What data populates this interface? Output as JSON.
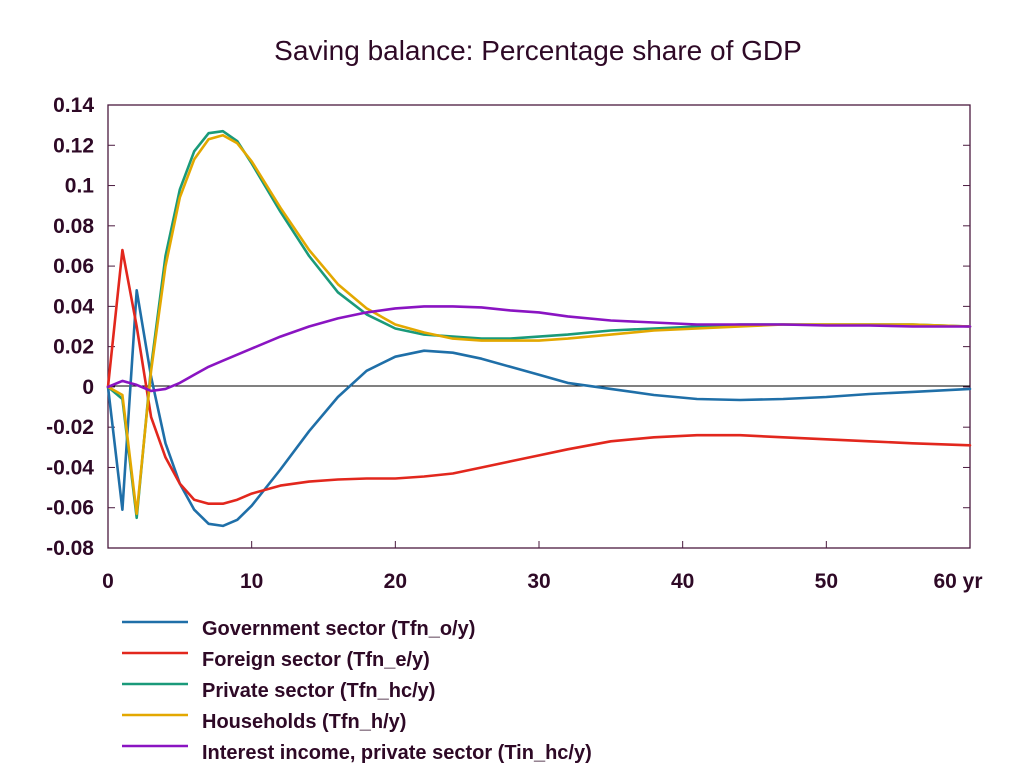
{
  "chart_data": {
    "type": "line",
    "title": "Saving balance: Percentage share of GDP",
    "xlabel": "",
    "ylabel": "",
    "x_unit": "yr",
    "xlim": [
      0,
      60
    ],
    "ylim": [
      -0.08,
      0.14
    ],
    "x_ticks": [
      0,
      10,
      20,
      30,
      40,
      50,
      60
    ],
    "x_tick_labels": [
      "0",
      "10",
      "20",
      "30",
      "40",
      "50",
      "60 yr"
    ],
    "y_ticks": [
      -0.08,
      -0.06,
      -0.04,
      -0.02,
      0,
      0.02,
      0.04,
      0.06,
      0.08,
      0.1,
      0.12,
      0.14
    ],
    "y_tick_labels": [
      "-0.08",
      "-0.06",
      "-0.04",
      "-0.02",
      "0",
      "0.02",
      "0.04",
      "0.06",
      "0.08",
      "0.1",
      "0.12",
      "0.14"
    ],
    "zero_line": true,
    "grid": false,
    "legend_position": "bottom",
    "series": [
      {
        "name": "Government sector (Tfn_o/y)",
        "color": "#1f6fa8",
        "points": [
          [
            0,
            0
          ],
          [
            1,
            -0.061
          ],
          [
            2,
            0.048
          ],
          [
            3,
            0.005
          ],
          [
            4,
            -0.028
          ],
          [
            5,
            -0.048
          ],
          [
            6,
            -0.061
          ],
          [
            7,
            -0.068
          ],
          [
            8,
            -0.069
          ],
          [
            9,
            -0.066
          ],
          [
            10,
            -0.059
          ],
          [
            12,
            -0.041
          ],
          [
            14,
            -0.022
          ],
          [
            16,
            -0.005
          ],
          [
            18,
            0.008
          ],
          [
            20,
            0.015
          ],
          [
            22,
            0.018
          ],
          [
            24,
            0.017
          ],
          [
            26,
            0.014
          ],
          [
            28,
            0.01
          ],
          [
            30,
            0.006
          ],
          [
            32,
            0.002
          ],
          [
            35,
            -0.001
          ],
          [
            38,
            -0.004
          ],
          [
            41,
            -0.006
          ],
          [
            44,
            -0.0065
          ],
          [
            47,
            -0.006
          ],
          [
            50,
            -0.005
          ],
          [
            53,
            -0.0035
          ],
          [
            56,
            -0.0025
          ],
          [
            60,
            -0.001
          ]
        ]
      },
      {
        "name": "Foreign sector (Tfn_e/y)",
        "color": "#e2271d",
        "points": [
          [
            0,
            0
          ],
          [
            1,
            0.068
          ],
          [
            2,
            0.03
          ],
          [
            3,
            -0.015
          ],
          [
            4,
            -0.035
          ],
          [
            5,
            -0.048
          ],
          [
            6,
            -0.056
          ],
          [
            7,
            -0.058
          ],
          [
            8,
            -0.058
          ],
          [
            9,
            -0.056
          ],
          [
            10,
            -0.053
          ],
          [
            12,
            -0.049
          ],
          [
            14,
            -0.047
          ],
          [
            16,
            -0.046
          ],
          [
            18,
            -0.0455
          ],
          [
            20,
            -0.0455
          ],
          [
            22,
            -0.0445
          ],
          [
            24,
            -0.043
          ],
          [
            26,
            -0.04
          ],
          [
            28,
            -0.037
          ],
          [
            30,
            -0.034
          ],
          [
            32,
            -0.031
          ],
          [
            35,
            -0.027
          ],
          [
            38,
            -0.025
          ],
          [
            41,
            -0.024
          ],
          [
            44,
            -0.024
          ],
          [
            47,
            -0.025
          ],
          [
            50,
            -0.026
          ],
          [
            53,
            -0.027
          ],
          [
            56,
            -0.028
          ],
          [
            60,
            -0.029
          ]
        ]
      },
      {
        "name": "Private sector (Tfn_hc/y)",
        "color": "#1a9a7a",
        "points": [
          [
            0,
            0
          ],
          [
            1,
            -0.006
          ],
          [
            2,
            -0.065
          ],
          [
            3,
            0.01
          ],
          [
            4,
            0.065
          ],
          [
            5,
            0.098
          ],
          [
            6,
            0.117
          ],
          [
            7,
            0.126
          ],
          [
            8,
            0.127
          ],
          [
            9,
            0.122
          ],
          [
            10,
            0.111
          ],
          [
            12,
            0.087
          ],
          [
            14,
            0.065
          ],
          [
            16,
            0.047
          ],
          [
            18,
            0.036
          ],
          [
            20,
            0.029
          ],
          [
            22,
            0.026
          ],
          [
            24,
            0.025
          ],
          [
            26,
            0.024
          ],
          [
            28,
            0.024
          ],
          [
            30,
            0.025
          ],
          [
            32,
            0.026
          ],
          [
            35,
            0.028
          ],
          [
            38,
            0.029
          ],
          [
            41,
            0.03
          ],
          [
            44,
            0.031
          ],
          [
            47,
            0.031
          ],
          [
            50,
            0.031
          ],
          [
            53,
            0.031
          ],
          [
            56,
            0.031
          ],
          [
            60,
            0.03
          ]
        ]
      },
      {
        "name": "Households (Tfn_h/y)",
        "color": "#e3a800",
        "points": [
          [
            0,
            0
          ],
          [
            1,
            -0.004
          ],
          [
            2,
            -0.063
          ],
          [
            3,
            0.008
          ],
          [
            4,
            0.06
          ],
          [
            5,
            0.094
          ],
          [
            6,
            0.113
          ],
          [
            7,
            0.123
          ],
          [
            8,
            0.125
          ],
          [
            9,
            0.121
          ],
          [
            10,
            0.112
          ],
          [
            12,
            0.089
          ],
          [
            14,
            0.068
          ],
          [
            16,
            0.051
          ],
          [
            18,
            0.039
          ],
          [
            20,
            0.031
          ],
          [
            22,
            0.027
          ],
          [
            24,
            0.024
          ],
          [
            26,
            0.023
          ],
          [
            28,
            0.023
          ],
          [
            30,
            0.023
          ],
          [
            32,
            0.024
          ],
          [
            35,
            0.026
          ],
          [
            38,
            0.028
          ],
          [
            41,
            0.029
          ],
          [
            44,
            0.03
          ],
          [
            47,
            0.031
          ],
          [
            50,
            0.031
          ],
          [
            53,
            0.031
          ],
          [
            56,
            0.031
          ],
          [
            60,
            0.03
          ]
        ]
      },
      {
        "name": "Interest income, private sector (Tin_hc/y)",
        "color": "#8a14c2",
        "points": [
          [
            0,
            0
          ],
          [
            1,
            0.003
          ],
          [
            2,
            0.001
          ],
          [
            3,
            -0.002
          ],
          [
            4,
            -0.001
          ],
          [
            5,
            0.002
          ],
          [
            6,
            0.006
          ],
          [
            7,
            0.01
          ],
          [
            8,
            0.013
          ],
          [
            10,
            0.019
          ],
          [
            12,
            0.025
          ],
          [
            14,
            0.03
          ],
          [
            16,
            0.034
          ],
          [
            18,
            0.037
          ],
          [
            20,
            0.039
          ],
          [
            22,
            0.04
          ],
          [
            24,
            0.04
          ],
          [
            26,
            0.0395
          ],
          [
            28,
            0.038
          ],
          [
            30,
            0.037
          ],
          [
            32,
            0.035
          ],
          [
            35,
            0.033
          ],
          [
            38,
            0.032
          ],
          [
            41,
            0.031
          ],
          [
            44,
            0.031
          ],
          [
            47,
            0.031
          ],
          [
            50,
            0.0305
          ],
          [
            53,
            0.0305
          ],
          [
            56,
            0.03
          ],
          [
            60,
            0.03
          ]
        ]
      }
    ]
  }
}
